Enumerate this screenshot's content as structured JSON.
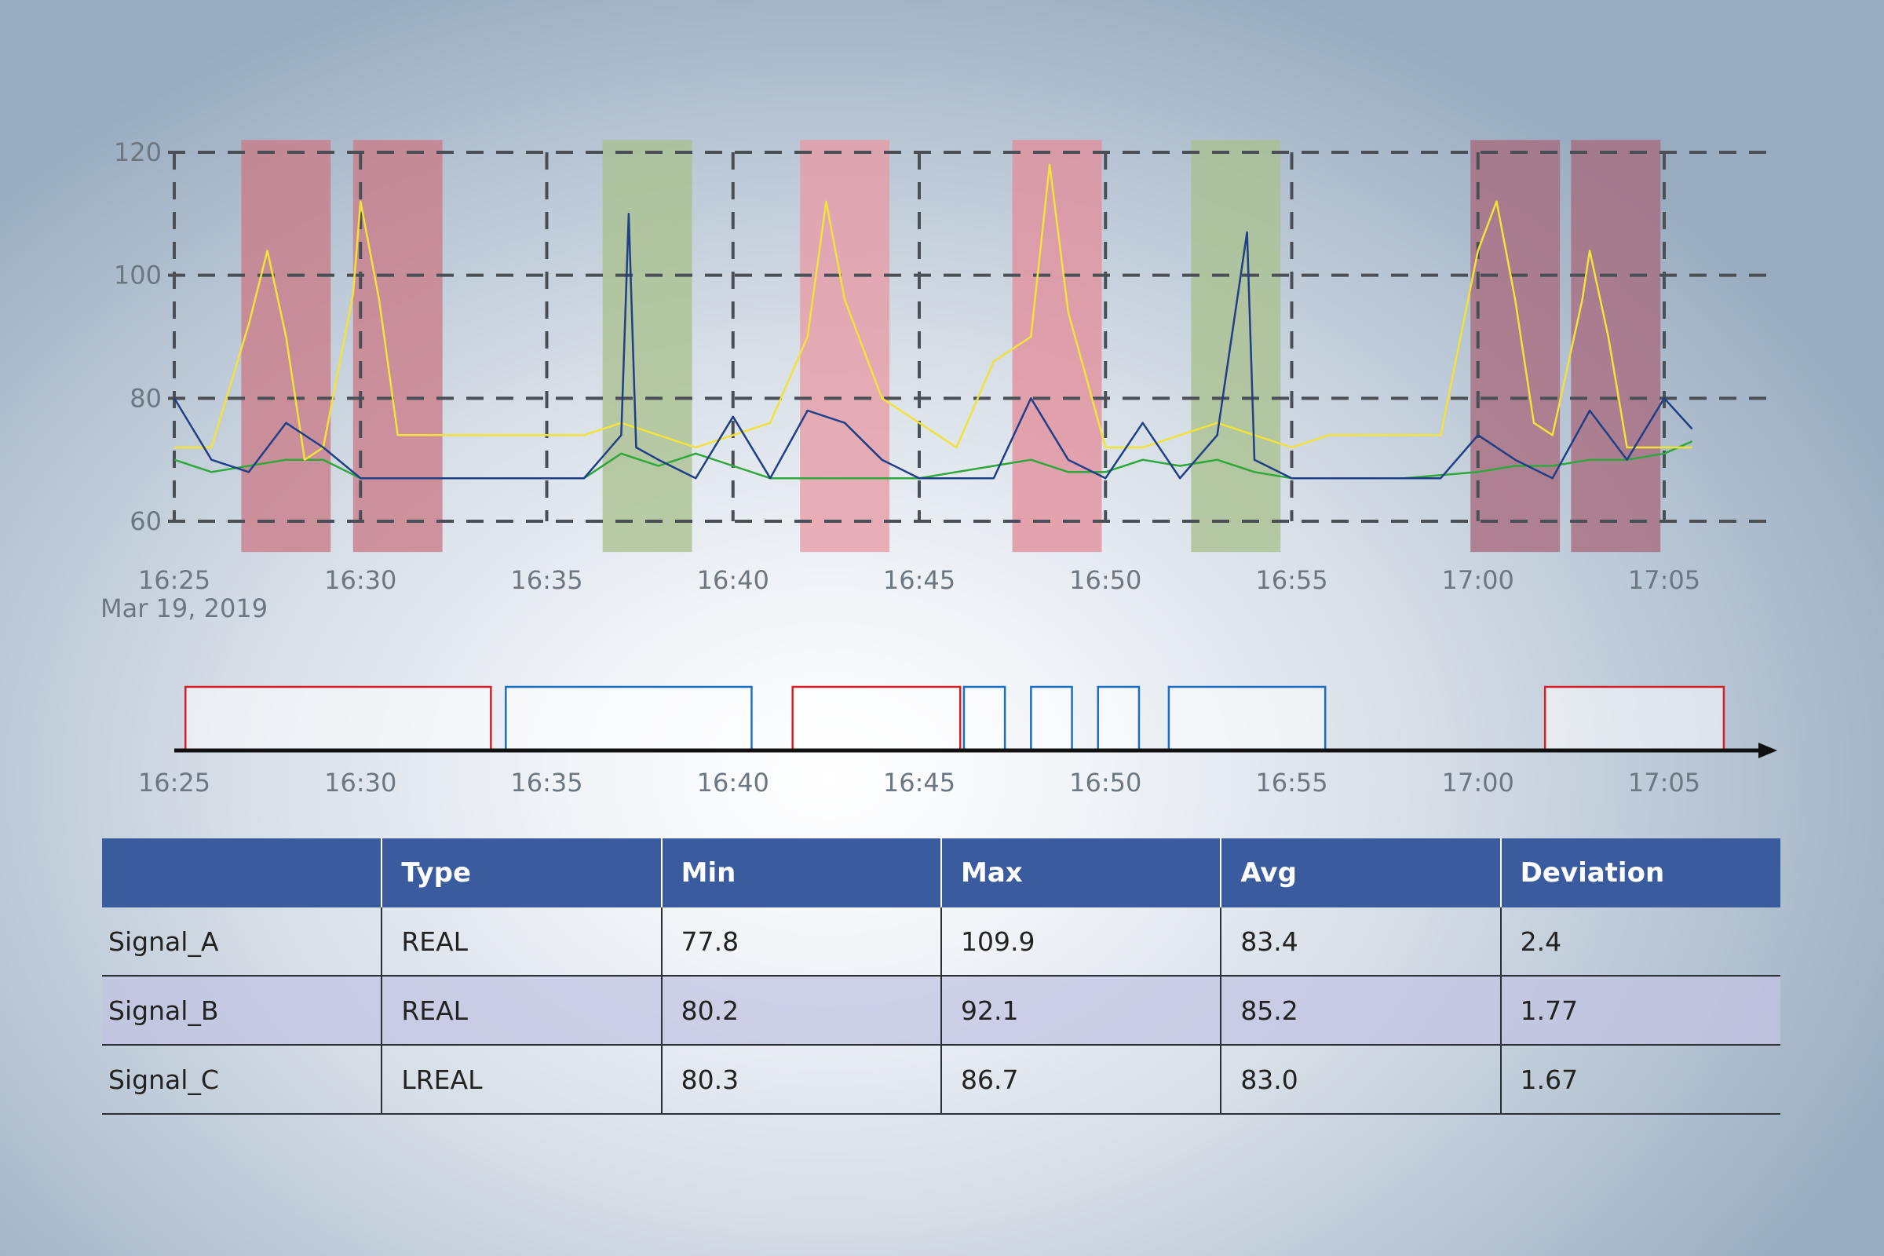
{
  "chart_data": [
    {
      "type": "line",
      "x_unit": "time",
      "xlim": [
        "16:25",
        "17:05"
      ],
      "ylim": [
        55,
        122
      ],
      "yticks": [
        60,
        80,
        100,
        120
      ],
      "xticks": [
        "16:25",
        "16:30",
        "16:35",
        "16:40",
        "16:45",
        "16:50",
        "16:55",
        "17:00",
        "17:05"
      ],
      "date_label": "Mar 19, 2019",
      "grid": true,
      "bands": [
        {
          "start": "16:26:48",
          "end": "16:29:12",
          "color": "#c97b87"
        },
        {
          "start": "16:29:48",
          "end": "16:32:12",
          "color": "#c97b87"
        },
        {
          "start": "16:36:30",
          "end": "16:38:54",
          "color": "#a9c08e"
        },
        {
          "start": "16:41:48",
          "end": "16:44:12",
          "color": "#e79ba5"
        },
        {
          "start": "16:47:30",
          "end": "16:49:54",
          "color": "#e28e9b"
        },
        {
          "start": "16:52:18",
          "end": "16:54:42",
          "color": "#a9c08e"
        },
        {
          "start": "16:59:48",
          "end": "17:02:12",
          "color": "#a86a7e"
        },
        {
          "start": "17:02:30",
          "end": "17:04:54",
          "color": "#a86a7e"
        }
      ],
      "series": [
        {
          "color": "#2ea83a",
          "points": [
            [
              "16:25",
              70
            ],
            [
              "16:26",
              68
            ],
            [
              "16:27",
              69
            ],
            [
              "16:28",
              70
            ],
            [
              "16:29",
              70
            ],
            [
              "16:30",
              67
            ],
            [
              "16:32",
              67
            ],
            [
              "16:36",
              67
            ],
            [
              "16:37",
              71
            ],
            [
              "16:38",
              69
            ],
            [
              "16:39",
              71
            ],
            [
              "16:40",
              69
            ],
            [
              "16:41",
              67
            ],
            [
              "16:42",
              67
            ],
            [
              "16:45",
              67
            ],
            [
              "16:46",
              68
            ],
            [
              "16:47",
              69
            ],
            [
              "16:48",
              70
            ],
            [
              "16:49",
              68
            ],
            [
              "16:50",
              68
            ],
            [
              "16:51",
              70
            ],
            [
              "16:52",
              69
            ],
            [
              "16:53",
              70
            ],
            [
              "16:54",
              68
            ],
            [
              "16:55",
              67
            ],
            [
              "16:58",
              67
            ],
            [
              "17:00",
              68
            ],
            [
              "17:01",
              69
            ],
            [
              "17:02",
              69
            ],
            [
              "17:03",
              70
            ],
            [
              "17:04",
              70
            ],
            [
              "17:05",
              71
            ],
            [
              "17:05:45",
              73
            ]
          ]
        },
        {
          "color": "#f2e23a",
          "points": [
            [
              "16:25",
              72
            ],
            [
              "16:26",
              72
            ],
            [
              "16:27",
              92
            ],
            [
              "16:27:30",
              104
            ],
            [
              "16:28",
              90
            ],
            [
              "16:28:30",
              70
            ],
            [
              "16:29",
              72
            ],
            [
              "16:29:48",
              97
            ],
            [
              "16:30",
              112
            ],
            [
              "16:30:30",
              96
            ],
            [
              "16:31",
              74
            ],
            [
              "16:32",
              74
            ],
            [
              "16:35",
              74
            ],
            [
              "16:36",
              74
            ],
            [
              "16:37",
              76
            ],
            [
              "16:38",
              74
            ],
            [
              "16:39",
              72
            ],
            [
              "16:40",
              74
            ],
            [
              "16:41",
              76
            ],
            [
              "16:42",
              90
            ],
            [
              "16:42:30",
              112
            ],
            [
              "16:43",
              96
            ],
            [
              "16:44",
              80
            ],
            [
              "16:45",
              76
            ],
            [
              "16:46",
              72
            ],
            [
              "16:47",
              86
            ],
            [
              "16:48",
              90
            ],
            [
              "16:48:30",
              118
            ],
            [
              "16:49",
              94
            ],
            [
              "16:50",
              72
            ],
            [
              "16:51",
              72
            ],
            [
              "16:52",
              74
            ],
            [
              "16:53",
              76
            ],
            [
              "16:54",
              74
            ],
            [
              "16:55",
              72
            ],
            [
              "16:56",
              74
            ],
            [
              "16:58",
              74
            ],
            [
              "16:59",
              74
            ],
            [
              "17:00",
              104
            ],
            [
              "17:00:30",
              112
            ],
            [
              "17:01",
              96
            ],
            [
              "17:01:30",
              76
            ],
            [
              "17:02",
              74
            ],
            [
              "17:02:48",
              96
            ],
            [
              "17:03",
              104
            ],
            [
              "17:03:30",
              90
            ],
            [
              "17:04",
              72
            ],
            [
              "17:05",
              72
            ],
            [
              "17:05:45",
              72
            ]
          ]
        },
        {
          "color": "#1f3f86",
          "points": [
            [
              "16:25",
              80
            ],
            [
              "16:26",
              70
            ],
            [
              "16:27",
              68
            ],
            [
              "16:28",
              76
            ],
            [
              "16:29",
              72
            ],
            [
              "16:30",
              67
            ],
            [
              "16:32",
              67
            ],
            [
              "16:34",
              67
            ],
            [
              "16:36",
              67
            ],
            [
              "16:37",
              74
            ],
            [
              "16:37:12",
              110
            ],
            [
              "16:37:24",
              72
            ],
            [
              "16:38",
              70
            ],
            [
              "16:39",
              67
            ],
            [
              "16:40",
              77
            ],
            [
              "16:41",
              67
            ],
            [
              "16:42",
              78
            ],
            [
              "16:43",
              76
            ],
            [
              "16:44",
              70
            ],
            [
              "16:45",
              67
            ],
            [
              "16:47",
              67
            ],
            [
              "16:48",
              80
            ],
            [
              "16:49",
              70
            ],
            [
              "16:50",
              67
            ],
            [
              "16:51",
              76
            ],
            [
              "16:52",
              67
            ],
            [
              "16:53",
              74
            ],
            [
              "16:53:48",
              107
            ],
            [
              "16:54",
              70
            ],
            [
              "16:55",
              67
            ],
            [
              "16:57",
              67
            ],
            [
              "16:59",
              67
            ],
            [
              "17:00",
              74
            ],
            [
              "17:01",
              70
            ],
            [
              "17:02",
              67
            ],
            [
              "17:03",
              78
            ],
            [
              "17:04",
              70
            ],
            [
              "17:05",
              80
            ],
            [
              "17:05:45",
              75
            ]
          ]
        }
      ]
    },
    {
      "type": "timeline",
      "xlim": [
        "16:25",
        "17:05"
      ],
      "xticks": [
        "16:25",
        "16:30",
        "16:35",
        "16:40",
        "16:45",
        "16:50",
        "16:55",
        "17:00",
        "17:05"
      ],
      "segments": [
        {
          "start": "16:25:18",
          "end": "16:33:30",
          "color": "#d42027"
        },
        {
          "start": "16:33:54",
          "end": "16:40:30",
          "color": "#1b6fc2"
        },
        {
          "start": "16:41:36",
          "end": "16:46:06",
          "color": "#d42027"
        },
        {
          "start": "16:46:12",
          "end": "16:47:18",
          "color": "#1b6fc2"
        },
        {
          "start": "16:48:00",
          "end": "16:49:06",
          "color": "#1b6fc2"
        },
        {
          "start": "16:49:48",
          "end": "16:50:54",
          "color": "#1b6fc2"
        },
        {
          "start": "16:51:42",
          "end": "16:55:54",
          "color": "#1b6fc2"
        },
        {
          "start": "17:01:48",
          "end": "17:06:36",
          "color": "#d42027"
        }
      ]
    }
  ],
  "table": {
    "header_color": "#3a5c9e",
    "headers": [
      "",
      "Type",
      "Min",
      "Max",
      "Avg",
      "Deviation"
    ],
    "rows": [
      [
        "Signal_A",
        "REAL",
        "77.8",
        "109.9",
        "83.4",
        "2.4"
      ],
      [
        "Signal_B",
        "REAL",
        "80.2",
        "92.1",
        "85.2",
        "1.77"
      ],
      [
        "Signal_C",
        "LREAL",
        "80.3",
        "86.7",
        "83.0",
        "1.67"
      ]
    ]
  }
}
